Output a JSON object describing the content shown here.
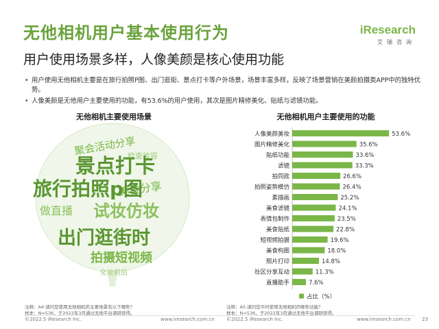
{
  "header": {
    "title": "无他相机用户基本使用行为",
    "subtitle": "用户使用场景多样，人像美颜是核心使用功能"
  },
  "logo": {
    "text": "iResearch",
    "subtext": "艾瑞咨询"
  },
  "bullets": [
    "用户使用无他相机主要是在旅行拍照P图、出门逛街、景点打卡等户外场景，场景丰富多样，反映了场景营销在美颜拍摄类APP中的独特优势。",
    "人像美颜是无他用户主要使用的功能，有53.6%的用户使用，其次是图片精修美化、贴纸与滤镜功能。"
  ],
  "left_panel": {
    "title": "无他相机主要使用场景",
    "words": [
      {
        "text": "景点打卡",
        "size": "big",
        "color": "#5a9632"
      },
      {
        "text": "旅行拍照p图",
        "size": "big",
        "color": "#5a9632"
      },
      {
        "text": "出门逛街时",
        "size": "big",
        "color": "#5a9632"
      },
      {
        "text": "拍摄短视频",
        "size": "medium",
        "color": "#7ab648"
      },
      {
        "text": "美食分享",
        "size": "medium",
        "color": "#7ab648"
      },
      {
        "text": "试妆仿妆",
        "size": "medium",
        "color": "#8cc060"
      },
      {
        "text": "聚会活动分享",
        "size": "small",
        "color": "#7ab648"
      },
      {
        "text": "检查妆容",
        "size": "small",
        "color": "#9cc97a"
      },
      {
        "text": "做直播",
        "size": "small",
        "color": "#8cc060"
      },
      {
        "text": "化妆前后",
        "size": "small",
        "color": "#9cc97a"
      }
    ]
  },
  "right_panel": {
    "title": "无他相机用户主要使用的功能"
  },
  "chart_data": {
    "type": "bar",
    "orientation": "horizontal",
    "categories": [
      "人像美颜美妆",
      "图片精修美化",
      "贴纸功能",
      "滤镜",
      "拍同款",
      "拍照姿势模仿",
      "素描画",
      "美食滤镜",
      "表情包制作",
      "美食贴纸",
      "短视频拍摄",
      "美食构图",
      "照片打印",
      "社区分享互动",
      "直播助手"
    ],
    "values": [
      53.6,
      35.6,
      33.6,
      33.3,
      26.6,
      26.4,
      25.2,
      24.1,
      23.5,
      22.8,
      19.6,
      18.0,
      14.8,
      11.3,
      7.6
    ],
    "value_labels": [
      "53.6%",
      "35.6%",
      "33.6%",
      "33.3%",
      "26.6%",
      "26.4%",
      "25.2%",
      "24.1%",
      "23.5%",
      "22.8%",
      "19.6%",
      "18.0%",
      "14.8%",
      "11.3%",
      "7.6%"
    ],
    "legend": "占比（%）",
    "legend_position": "bottom",
    "xlim": [
      0,
      60
    ],
    "bar_color": "#7ab648",
    "grid": false
  },
  "footnotes": {
    "left": [
      "注释：A4.请问您使用无他相机的主要场景有以下哪些？",
      "样本：N=536，于2022年3月通过无他平台调研获得。"
    ],
    "right": [
      "注释：A5.请问您平时使用无他相机的哪些功能？",
      "样本：N=536，于2022年3月通过无他平台调研获得。"
    ]
  },
  "footer": {
    "left_copyright": "©2022.5 iResearch Inc.",
    "left_url": "www.iresearch.com.cn",
    "right_copyright": "©2022.5 iResearch Inc.",
    "right_url": "www.iresearch.com.cn",
    "page_number": "23"
  },
  "colors": {
    "accent": "#6aa23c",
    "bar": "#7ab648"
  }
}
